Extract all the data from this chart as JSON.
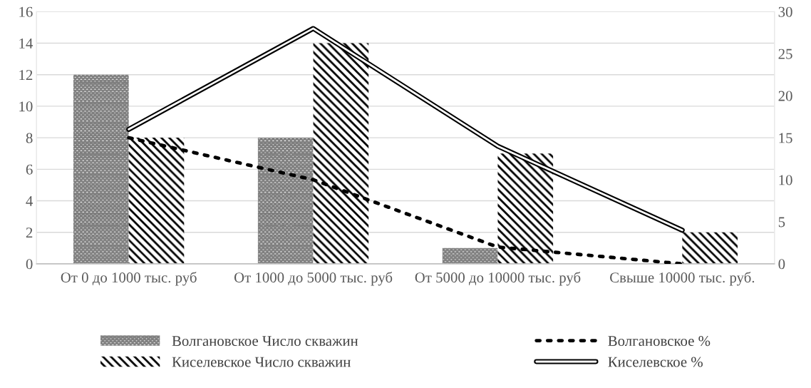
{
  "chart_data": {
    "type": "bar",
    "categories": [
      "От 0 до 1000 тыс. руб",
      "От 1000 до 5000 тыс. руб",
      "От 5000 до 10000 тыс. руб",
      "Свыше 10000 тыс. руб."
    ],
    "series": [
      {
        "name": "Волгановское Число скважин",
        "color": "#7f7f7f",
        "values": [
          12,
          8,
          1,
          0
        ]
      },
      {
        "name": "Киселевское Число скважин",
        "color": "#000000",
        "values": [
          8,
          14,
          7,
          2
        ]
      },
      {
        "name": "Волгановское %",
        "type": "line",
        "axis": "y2",
        "line_style": "dotted",
        "color": "#000000",
        "values": [
          15,
          10,
          2,
          0
        ]
      },
      {
        "name": "Киселевское %",
        "type": "line",
        "axis": "y2",
        "line_style": "solid",
        "color": "#000000",
        "values": [
          16,
          28,
          14,
          4
        ]
      }
    ],
    "ylim": [
      0,
      16
    ],
    "yticks": [
      0,
      2,
      4,
      6,
      8,
      10,
      12,
      14,
      16
    ],
    "y2lim": [
      0,
      30
    ],
    "y2ticks": [
      0,
      5,
      10,
      15,
      20,
      25,
      30
    ],
    "grid": "y",
    "legend": "bottom"
  }
}
